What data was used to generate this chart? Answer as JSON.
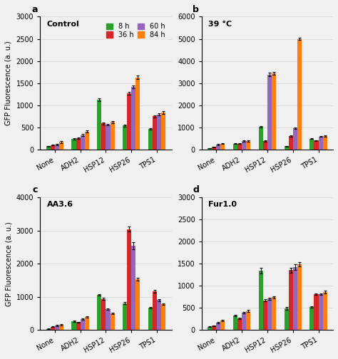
{
  "categories": [
    "None",
    "ADH2",
    "HSP12",
    "HSP26",
    "TPS1"
  ],
  "time_labels": [
    "8 h",
    "36 h",
    "60 h",
    "84 h"
  ],
  "colors": [
    "#2ca02c",
    "#d62728",
    "#9467bd",
    "#ff7f0e"
  ],
  "subplots": [
    {
      "label": "a",
      "title": "Control",
      "ylim": [
        0,
        3000
      ],
      "yticks": [
        0,
        500,
        1000,
        1500,
        2000,
        2500,
        3000
      ],
      "values": [
        [
          75,
          100,
          110,
          170
        ],
        [
          240,
          260,
          330,
          410
        ],
        [
          1130,
          590,
          560,
          620
        ],
        [
          545,
          1270,
          1410,
          1630
        ],
        [
          465,
          750,
          790,
          840
        ]
      ],
      "errors": [
        [
          10,
          10,
          15,
          20
        ],
        [
          15,
          15,
          20,
          20
        ],
        [
          30,
          20,
          20,
          25
        ],
        [
          25,
          30,
          30,
          40
        ],
        [
          20,
          25,
          25,
          30
        ]
      ]
    },
    {
      "label": "b",
      "title": "39 °C",
      "ylim": [
        0,
        6000
      ],
      "yticks": [
        0,
        1000,
        2000,
        3000,
        4000,
        5000,
        6000
      ],
      "values": [
        [
          60,
          120,
          230,
          270
        ],
        [
          270,
          270,
          390,
          390
        ],
        [
          1040,
          390,
          3380,
          3440
        ],
        [
          155,
          620,
          960,
          5000
        ],
        [
          490,
          410,
          590,
          620
        ]
      ],
      "errors": [
        [
          10,
          15,
          20,
          25
        ],
        [
          20,
          20,
          25,
          25
        ],
        [
          30,
          20,
          80,
          70
        ],
        [
          20,
          30,
          40,
          60
        ],
        [
          20,
          20,
          25,
          30
        ]
      ]
    },
    {
      "label": "c",
      "title": "AA3.6",
      "ylim": [
        0,
        4000
      ],
      "yticks": [
        0,
        1000,
        2000,
        3000,
        4000
      ],
      "values": [
        [
          40,
          100,
          140,
          160
        ],
        [
          260,
          235,
          330,
          390
        ],
        [
          1060,
          940,
          630,
          510
        ],
        [
          810,
          3040,
          2540,
          1530
        ],
        [
          670,
          1170,
          900,
          780
        ]
      ],
      "errors": [
        [
          10,
          10,
          15,
          15
        ],
        [
          20,
          15,
          20,
          25
        ],
        [
          30,
          25,
          20,
          20
        ],
        [
          30,
          80,
          100,
          50
        ],
        [
          25,
          40,
          30,
          25
        ]
      ]
    },
    {
      "label": "d",
      "title": "Fur1.0",
      "ylim": [
        0,
        3000
      ],
      "yticks": [
        0,
        500,
        1000,
        1500,
        2000,
        2500,
        3000
      ],
      "values": [
        [
          75,
          100,
          170,
          210
        ],
        [
          335,
          270,
          390,
          430
        ],
        [
          1340,
          670,
          710,
          740
        ],
        [
          490,
          1350,
          1420,
          1490
        ],
        [
          520,
          810,
          810,
          860
        ]
      ],
      "errors": [
        [
          10,
          10,
          15,
          15
        ],
        [
          15,
          15,
          20,
          20
        ],
        [
          60,
          25,
          25,
          30
        ],
        [
          25,
          50,
          60,
          50
        ],
        [
          20,
          20,
          20,
          25
        ]
      ]
    }
  ],
  "ylabel": "GFP Fluorescence (a. u.)",
  "bar_width": 0.17,
  "fig_facecolor": "#f0f0f0"
}
